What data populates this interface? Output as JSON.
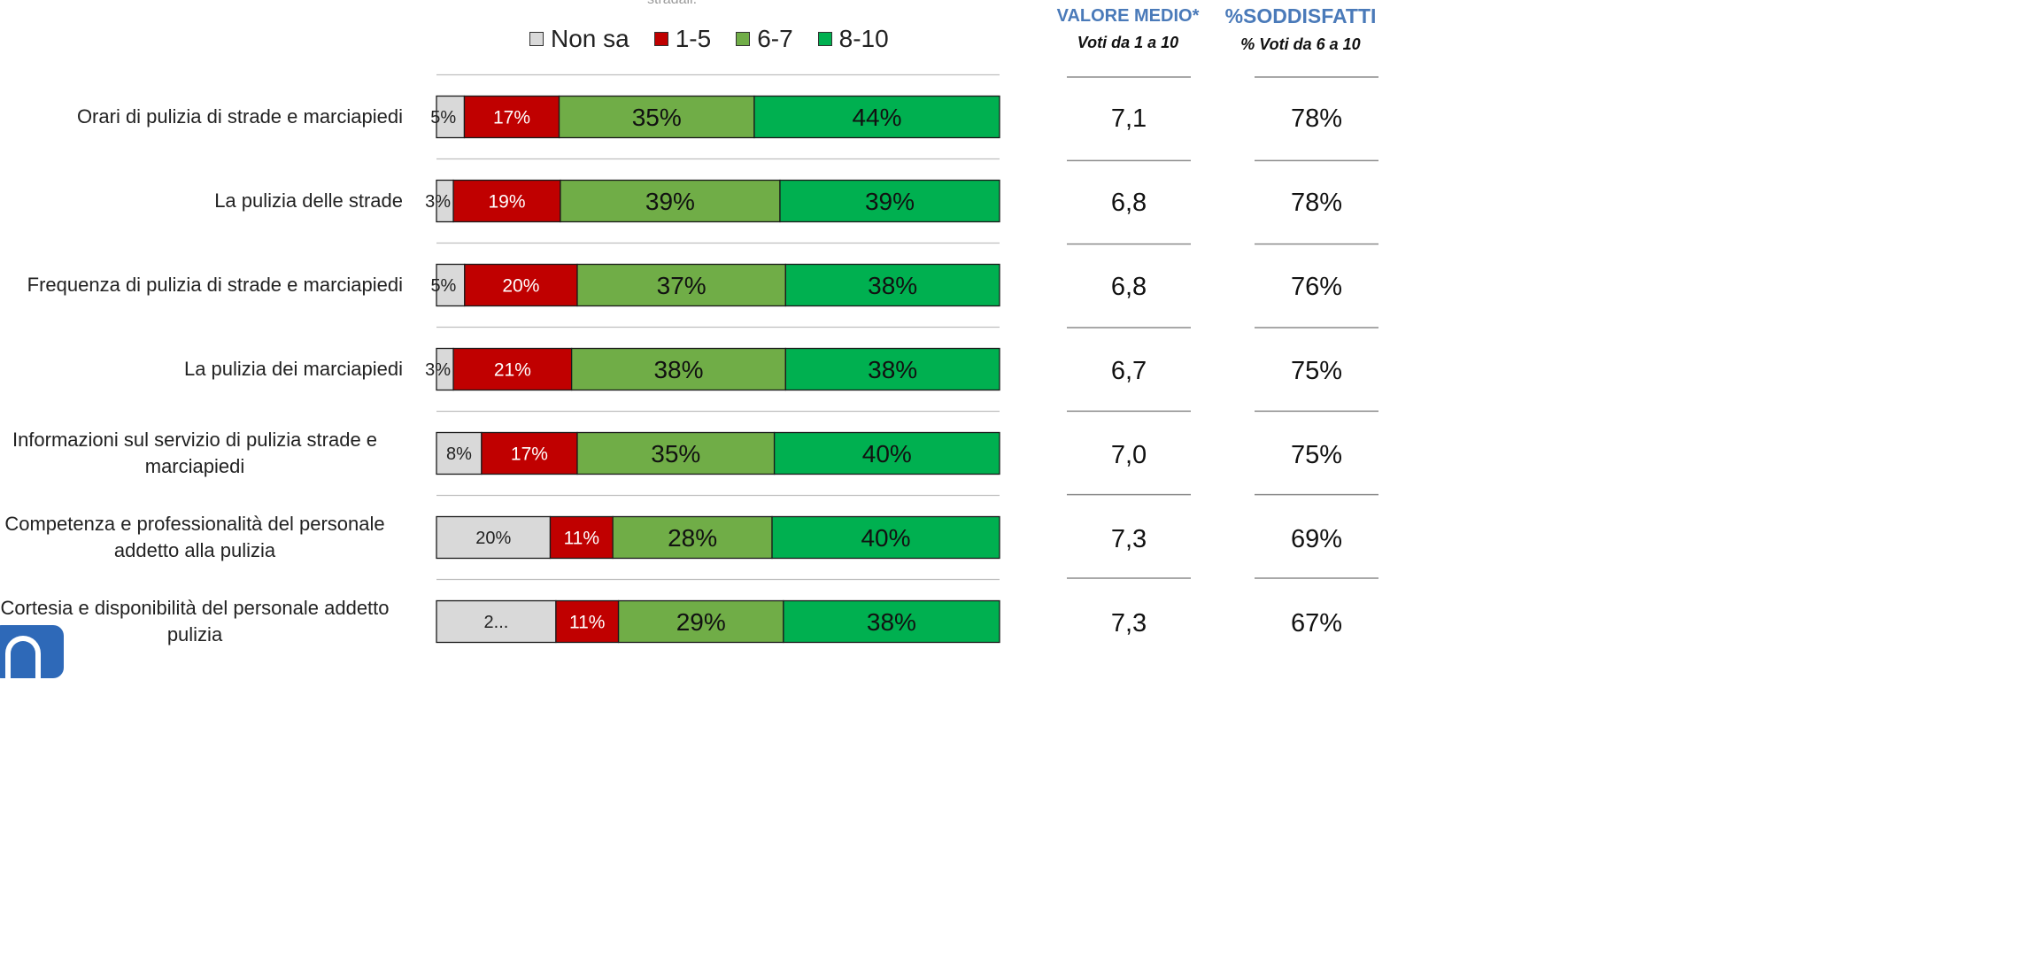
{
  "header": {
    "note": "stradali.",
    "mean_title": "VALORE MEDIO*",
    "mean_subtitle": "Voti da 1 a 10",
    "pct_title": "%SODDISFATTI",
    "pct_subtitle": "% Voti da 6 a 10"
  },
  "colors": {
    "Non sa": "#d9d9d9",
    "1-5": "#c00000",
    "6-7": "#70ad47",
    "8-10": "#00b050"
  },
  "chart_data": {
    "type": "bar",
    "orientation": "horizontal",
    "stacked": true,
    "percent": true,
    "legend": "top",
    "categories": [
      "Orari di pulizia di strade e marciapiedi",
      "La pulizia delle strade",
      "Frequenza di pulizia di strade e marciapiedi",
      "La pulizia dei marciapiedi",
      "Informazioni sul servizio di pulizia strade e marciapiedi",
      "Competenza e professionalità del personale addetto alla pulizia",
      "Cortesia e disponibilità del personale addetto pulizia"
    ],
    "series": [
      {
        "name": "Non sa",
        "values": [
          5,
          3,
          5,
          3,
          8,
          20,
          21
        ],
        "labels": [
          "5%",
          "3%",
          "5%",
          "3%",
          "8%",
          "20%",
          "2..."
        ]
      },
      {
        "name": "1-5",
        "values": [
          17,
          19,
          20,
          21,
          17,
          11,
          11
        ],
        "labels": [
          "17%",
          "19%",
          "20%",
          "21%",
          "17%",
          "11%",
          "11%"
        ]
      },
      {
        "name": "6-7",
        "values": [
          35,
          39,
          37,
          38,
          35,
          28,
          29
        ],
        "labels": [
          "35%",
          "39%",
          "37%",
          "38%",
          "35%",
          "28%",
          "29%"
        ]
      },
      {
        "name": "8-10",
        "values": [
          44,
          39,
          38,
          38,
          40,
          40,
          38
        ],
        "labels": [
          "44%",
          "39%",
          "38%",
          "38%",
          "40%",
          "40%",
          "38%"
        ]
      }
    ],
    "mean_values": [
      "7,1",
      "6,8",
      "6,8",
      "6,7",
      "7,0",
      "7,3",
      "7,3"
    ],
    "satisfied_pct": [
      "78%",
      "78%",
      "76%",
      "75%",
      "75%",
      "69%",
      "67%"
    ]
  }
}
